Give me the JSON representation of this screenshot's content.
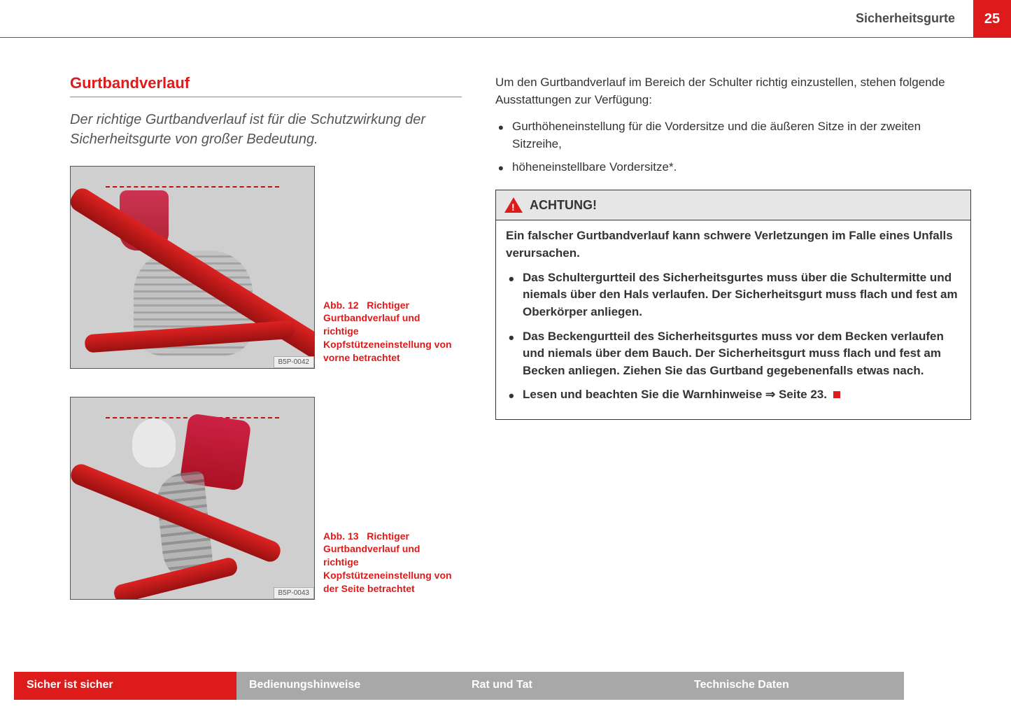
{
  "header": {
    "section": "Sicherheitsgurte",
    "page": "25"
  },
  "left": {
    "title": "Gurtbandverlauf",
    "intro": "Der richtige Gurtbandverlauf ist für die Schutzwirkung der Sicherheitsgurte von großer Bedeutung.",
    "fig1": {
      "code": "B5P-0042",
      "num": "Abb. 12",
      "caption": "Richtiger Gurtbandverlauf und richtige Kopfstützeneinstellung von vorne betrachtet"
    },
    "fig2": {
      "code": "B5P-0043",
      "num": "Abb. 13",
      "caption": "Richtiger Gurtbandverlauf und richtige Kopfstützeneinstellung von der Seite betrachtet"
    }
  },
  "right": {
    "para1": "Um den Gurtbandverlauf im Bereich der Schulter richtig einzustellen, stehen folgende Ausstattungen zur Verfügung:",
    "bul1": "Gurthöheneinstellung für die Vordersitze und die äußeren Sitze in der zweiten Sitzreihe,",
    "bul2": "höheneinstellbare Vordersitze*.",
    "warning": {
      "title": "ACHTUNG!",
      "intro": "Ein falscher Gurtbandverlauf kann schwere Verletzungen im Falle eines Unfalls verursachen.",
      "w1": "Das Schultergurtteil des Sicherheitsgurtes muss über die Schultermitte und niemals über den Hals verlaufen. Der Sicherheitsgurt muss flach und fest am Oberkörper anliegen.",
      "w2": "Das Beckengurtteil des Sicherheitsgurtes muss vor dem Becken verlaufen und niemals über dem Bauch. Der Sicherheitsgurt muss flach und fest am Becken anliegen. Ziehen Sie das Gurtband gegebenenfalls etwas nach.",
      "w3": "Lesen und beachten Sie die Warnhinweise ⇒ Seite 23."
    }
  },
  "footer": {
    "t1": "Sicher ist sicher",
    "t2": "Bedienungshinweise",
    "t3": "Rat und Tat",
    "t4": "Technische Daten"
  },
  "colors": {
    "accent": "#dd1b1b",
    "grey": "#a8a8a8"
  }
}
